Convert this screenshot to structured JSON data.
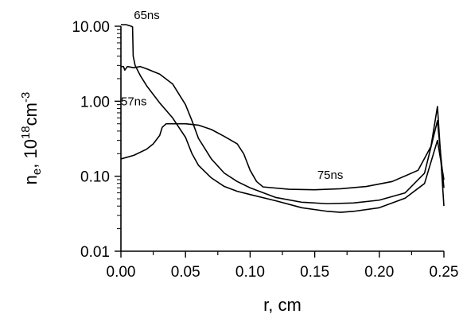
{
  "chart_data": {
    "type": "line",
    "title": "",
    "xlabel": "r, cm",
    "ylabel": {
      "base": "n",
      "sub": "e",
      "mid": ", 10",
      "sup1": "18",
      "unit": "cm",
      "sup2": "-3"
    },
    "xlim": [
      0,
      0.25
    ],
    "ylim": [
      0.01,
      10
    ],
    "yscale": "log",
    "grid": false,
    "x_ticks": [
      "0.00",
      "0.05",
      "0.10",
      "0.15",
      "0.20",
      "0.25"
    ],
    "y_ticks": [
      "0.01",
      "0.10",
      "1.00",
      "10.00"
    ],
    "series": [
      {
        "name": "65ns",
        "x": [
          0.0,
          0.004,
          0.008,
          0.009,
          0.0095,
          0.011,
          0.015,
          0.02,
          0.03,
          0.04,
          0.05,
          0.055,
          0.06,
          0.07,
          0.08,
          0.09,
          0.1,
          0.12,
          0.14,
          0.16,
          0.17,
          0.18,
          0.2,
          0.22,
          0.235,
          0.245,
          0.25
        ],
        "y": [
          10.5,
          10.5,
          10.0,
          9.8,
          4.0,
          3.0,
          2.2,
          1.6,
          0.95,
          0.6,
          0.33,
          0.2,
          0.14,
          0.095,
          0.073,
          0.063,
          0.057,
          0.047,
          0.038,
          0.034,
          0.033,
          0.034,
          0.038,
          0.051,
          0.08,
          0.3,
          0.09
        ]
      },
      {
        "name": "57ns",
        "x": [
          0.0,
          0.01,
          0.02,
          0.025,
          0.03,
          0.032,
          0.035,
          0.05,
          0.06,
          0.07,
          0.08,
          0.09,
          0.095,
          0.1,
          0.105,
          0.11,
          0.13,
          0.15,
          0.17,
          0.19,
          0.21,
          0.23,
          0.24,
          0.245,
          0.25
        ],
        "y": [
          0.17,
          0.19,
          0.23,
          0.27,
          0.35,
          0.45,
          0.5,
          0.5,
          0.48,
          0.42,
          0.34,
          0.27,
          0.2,
          0.12,
          0.085,
          0.072,
          0.067,
          0.066,
          0.068,
          0.073,
          0.085,
          0.12,
          0.25,
          0.85,
          0.04
        ]
      },
      {
        "name": "75ns",
        "x": [
          0.0,
          0.002,
          0.003,
          0.005,
          0.01,
          0.015,
          0.02,
          0.03,
          0.04,
          0.05,
          0.055,
          0.06,
          0.07,
          0.08,
          0.09,
          0.1,
          0.12,
          0.14,
          0.16,
          0.18,
          0.2,
          0.22,
          0.235,
          0.245,
          0.25
        ],
        "y": [
          2.9,
          2.9,
          2.6,
          2.9,
          2.8,
          2.9,
          2.7,
          2.3,
          1.7,
          0.9,
          0.55,
          0.32,
          0.17,
          0.11,
          0.085,
          0.07,
          0.052,
          0.045,
          0.043,
          0.044,
          0.048,
          0.06,
          0.11,
          0.55,
          0.07
        ]
      }
    ],
    "annotations": [
      {
        "text": "65ns",
        "at_x": 0.01,
        "at_y": 12.4
      },
      {
        "text": "57ns",
        "at_x": 0.0,
        "at_y": 0.88
      },
      {
        "text": "75ns",
        "at_x": 0.152,
        "at_y": 0.092
      }
    ]
  }
}
